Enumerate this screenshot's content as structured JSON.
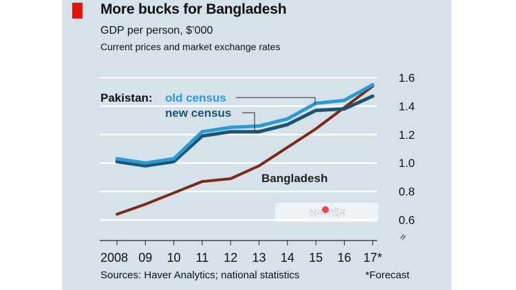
{
  "header": {
    "title": "More bucks for Bangladesh",
    "subtitle": "GDP per person, $’000",
    "subnote": "Current prices and market exchange rates"
  },
  "footer": {
    "source": "Sources: Haver Analytics; national statistics",
    "forecast_note": "*Forecast"
  },
  "chart_data": {
    "type": "line",
    "title": "More bucks for Bangladesh",
    "subtitle": "GDP per person, $’000",
    "xlabel": "",
    "ylabel": "GDP per person, $’000",
    "categories": [
      "2008",
      "09",
      "10",
      "11",
      "12",
      "13",
      "14",
      "15",
      "16",
      "17*"
    ],
    "ylim": [
      0.5,
      1.6
    ],
    "yticks": [
      0.6,
      0.8,
      1.0,
      1.2,
      1.4,
      1.6
    ],
    "ytick_labels": [
      "0.6",
      "0.8",
      "1.0",
      "1.2",
      "1.4",
      "1.6"
    ],
    "series_group_label": "Pakistan:",
    "series": [
      {
        "name": "Bangladesh",
        "color": "#7b2a16",
        "values": [
          0.64,
          0.71,
          0.79,
          0.87,
          0.89,
          0.98,
          1.11,
          1.24,
          1.39,
          1.54
        ]
      },
      {
        "name": "new census",
        "color": "#1d5470",
        "values": [
          1.01,
          0.98,
          1.01,
          1.19,
          1.22,
          1.22,
          1.27,
          1.37,
          1.38,
          1.47
        ]
      },
      {
        "name": "old census",
        "color": "#2a9ad8",
        "values": [
          1.03,
          1.0,
          1.03,
          1.22,
          1.25,
          1.26,
          1.31,
          1.42,
          1.44,
          1.55
        ]
      }
    ],
    "grid": true,
    "axis_break_symbol": "≈",
    "watermark_text": "অনলাইন"
  }
}
